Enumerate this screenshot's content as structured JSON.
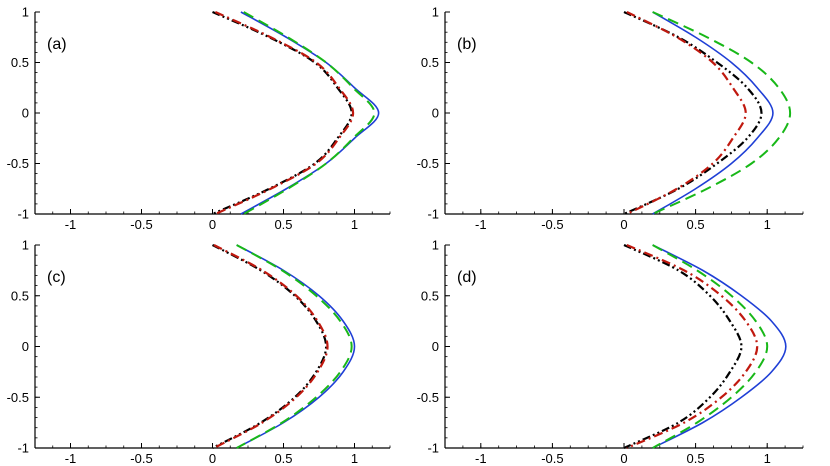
{
  "chart_data": [
    {
      "type": "line",
      "panel_label": "(a)",
      "xlim": [
        -1.25,
        1.25
      ],
      "ylim": [
        -1,
        1
      ],
      "xticks": [
        "-1",
        "-0.5",
        "0",
        "0.5",
        "1"
      ],
      "yticks": [
        "1",
        "0.5",
        "0",
        "-0.5",
        "-1"
      ],
      "grid": false,
      "series": [
        {
          "color": "#1f3fd6",
          "style": "solid",
          "points": [
            [
              0.2,
              1
            ],
            [
              0.52,
              0.75
            ],
            [
              0.8,
              0.5
            ],
            [
              1.0,
              0.25
            ],
            [
              1.17,
              0
            ],
            [
              1.0,
              -0.25
            ],
            [
              0.8,
              -0.5
            ],
            [
              0.52,
              -0.75
            ],
            [
              0.2,
              -1
            ]
          ]
        },
        {
          "color": "#18b818",
          "style": "dashed",
          "points": [
            [
              0.22,
              1
            ],
            [
              0.53,
              0.75
            ],
            [
              0.8,
              0.5
            ],
            [
              0.99,
              0.25
            ],
            [
              1.14,
              0
            ],
            [
              0.99,
              -0.25
            ],
            [
              0.8,
              -0.5
            ],
            [
              0.53,
              -0.75
            ],
            [
              0.22,
              -1
            ]
          ]
        },
        {
          "color": "#000000",
          "style": "dashdotdot",
          "points": [
            [
              0,
              1
            ],
            [
              0.4,
              0.75
            ],
            [
              0.72,
              0.5
            ],
            [
              0.88,
              0.25
            ],
            [
              0.98,
              0
            ],
            [
              0.88,
              -0.25
            ],
            [
              0.72,
              -0.5
            ],
            [
              0.4,
              -0.75
            ],
            [
              0,
              -1
            ]
          ]
        },
        {
          "color": "#c0190f",
          "style": "dashdot",
          "points": [
            [
              0.02,
              1
            ],
            [
              0.41,
              0.75
            ],
            [
              0.73,
              0.5
            ],
            [
              0.89,
              0.25
            ],
            [
              0.99,
              0
            ],
            [
              0.89,
              -0.25
            ],
            [
              0.73,
              -0.5
            ],
            [
              0.41,
              -0.75
            ],
            [
              0.02,
              -1
            ]
          ]
        }
      ]
    },
    {
      "type": "line",
      "panel_label": "(b)",
      "xlim": [
        -1.25,
        1.25
      ],
      "ylim": [
        -1,
        1
      ],
      "xticks": [
        "-1",
        "-0.5",
        "0",
        "0.5",
        "1"
      ],
      "yticks": [
        "1",
        "0.5",
        "0",
        "-0.5",
        "-1"
      ],
      "grid": false,
      "series": [
        {
          "color": "#1f3fd6",
          "style": "solid",
          "points": [
            [
              0.2,
              1
            ],
            [
              0.5,
              0.75
            ],
            [
              0.75,
              0.5
            ],
            [
              0.93,
              0.25
            ],
            [
              1.04,
              0
            ],
            [
              0.93,
              -0.25
            ],
            [
              0.75,
              -0.5
            ],
            [
              0.5,
              -0.75
            ],
            [
              0.2,
              -1
            ]
          ]
        },
        {
          "color": "#18b818",
          "style": "dashed",
          "points": [
            [
              0.2,
              1
            ],
            [
              0.58,
              0.75
            ],
            [
              0.89,
              0.5
            ],
            [
              1.08,
              0.25
            ],
            [
              1.16,
              0
            ],
            [
              1.08,
              -0.25
            ],
            [
              0.89,
              -0.5
            ],
            [
              0.58,
              -0.75
            ],
            [
              0.2,
              -1
            ]
          ]
        },
        {
          "color": "#000000",
          "style": "dashdotdot",
          "points": [
            [
              0,
              1
            ],
            [
              0.38,
              0.75
            ],
            [
              0.65,
              0.5
            ],
            [
              0.86,
              0.25
            ],
            [
              0.96,
              0
            ],
            [
              0.86,
              -0.25
            ],
            [
              0.65,
              -0.5
            ],
            [
              0.38,
              -0.75
            ],
            [
              0,
              -1
            ]
          ]
        },
        {
          "color": "#c0190f",
          "style": "dashdot",
          "points": [
            [
              0.02,
              1
            ],
            [
              0.37,
              0.75
            ],
            [
              0.62,
              0.5
            ],
            [
              0.76,
              0.25
            ],
            [
              0.85,
              0
            ],
            [
              0.76,
              -0.25
            ],
            [
              0.62,
              -0.5
            ],
            [
              0.37,
              -0.75
            ],
            [
              0.02,
              -1
            ]
          ]
        }
      ]
    },
    {
      "type": "line",
      "panel_label": "(c)",
      "xlim": [
        -1.25,
        1.25
      ],
      "ylim": [
        -1,
        1
      ],
      "xticks": [
        "-1",
        "-0.5",
        "0",
        "0.5",
        "1"
      ],
      "yticks": [
        "1",
        "0.5",
        "0",
        "-0.5",
        "-1"
      ],
      "grid": false,
      "series": [
        {
          "color": "#1f3fd6",
          "style": "solid",
          "points": [
            [
              0.17,
              1
            ],
            [
              0.5,
              0.75
            ],
            [
              0.75,
              0.5
            ],
            [
              0.92,
              0.25
            ],
            [
              1.0,
              0
            ],
            [
              0.92,
              -0.25
            ],
            [
              0.75,
              -0.5
            ],
            [
              0.5,
              -0.75
            ],
            [
              0.17,
              -1
            ]
          ]
        },
        {
          "color": "#18b818",
          "style": "dashed",
          "points": [
            [
              0.17,
              1
            ],
            [
              0.49,
              0.75
            ],
            [
              0.73,
              0.5
            ],
            [
              0.9,
              0.25
            ],
            [
              0.98,
              0
            ],
            [
              0.9,
              -0.25
            ],
            [
              0.73,
              -0.5
            ],
            [
              0.49,
              -0.75
            ],
            [
              0.17,
              -1
            ]
          ]
        },
        {
          "color": "#000000",
          "style": "dashdotdot",
          "points": [
            [
              0,
              1
            ],
            [
              0.34,
              0.75
            ],
            [
              0.58,
              0.5
            ],
            [
              0.73,
              0.25
            ],
            [
              0.8,
              0
            ],
            [
              0.73,
              -0.25
            ],
            [
              0.58,
              -0.5
            ],
            [
              0.34,
              -0.75
            ],
            [
              0,
              -1
            ]
          ]
        },
        {
          "color": "#c0190f",
          "style": "dashdot",
          "points": [
            [
              0.01,
              1
            ],
            [
              0.35,
              0.75
            ],
            [
              0.59,
              0.5
            ],
            [
              0.74,
              0.25
            ],
            [
              0.81,
              0
            ],
            [
              0.74,
              -0.25
            ],
            [
              0.59,
              -0.5
            ],
            [
              0.35,
              -0.75
            ],
            [
              0.01,
              -1
            ]
          ]
        }
      ]
    },
    {
      "type": "line",
      "panel_label": "(d)",
      "xlim": [
        -1.25,
        1.25
      ],
      "ylim": [
        -1,
        1
      ],
      "xticks": [
        "-1",
        "-0.5",
        "0",
        "0.5",
        "1"
      ],
      "yticks": [
        "1",
        "0.5",
        "0",
        "-0.5",
        "-1"
      ],
      "grid": false,
      "series": [
        {
          "color": "#1f3fd6",
          "style": "solid",
          "points": [
            [
              0.2,
              1
            ],
            [
              0.55,
              0.75
            ],
            [
              0.82,
              0.5
            ],
            [
              1.03,
              0.25
            ],
            [
              1.13,
              0
            ],
            [
              1.03,
              -0.25
            ],
            [
              0.82,
              -0.5
            ],
            [
              0.55,
              -0.75
            ],
            [
              0.2,
              -1
            ]
          ]
        },
        {
          "color": "#18b818",
          "style": "dashed",
          "points": [
            [
              0.2,
              1
            ],
            [
              0.51,
              0.75
            ],
            [
              0.75,
              0.5
            ],
            [
              0.92,
              0.25
            ],
            [
              1.0,
              0
            ],
            [
              0.92,
              -0.25
            ],
            [
              0.75,
              -0.5
            ],
            [
              0.51,
              -0.75
            ],
            [
              0.2,
              -1
            ]
          ]
        },
        {
          "color": "#000000",
          "style": "dashdotdot",
          "points": [
            [
              0,
              1
            ],
            [
              0.38,
              0.75
            ],
            [
              0.6,
              0.5
            ],
            [
              0.74,
              0.25
            ],
            [
              0.82,
              0
            ],
            [
              0.74,
              -0.25
            ],
            [
              0.6,
              -0.5
            ],
            [
              0.38,
              -0.75
            ],
            [
              0,
              -1
            ]
          ]
        },
        {
          "color": "#c0190f",
          "style": "dashdot",
          "points": [
            [
              0.02,
              1
            ],
            [
              0.42,
              0.75
            ],
            [
              0.68,
              0.5
            ],
            [
              0.85,
              0.25
            ],
            [
              0.93,
              0
            ],
            [
              0.85,
              -0.25
            ],
            [
              0.68,
              -0.5
            ],
            [
              0.42,
              -0.75
            ],
            [
              0.02,
              -1
            ]
          ]
        }
      ]
    }
  ]
}
